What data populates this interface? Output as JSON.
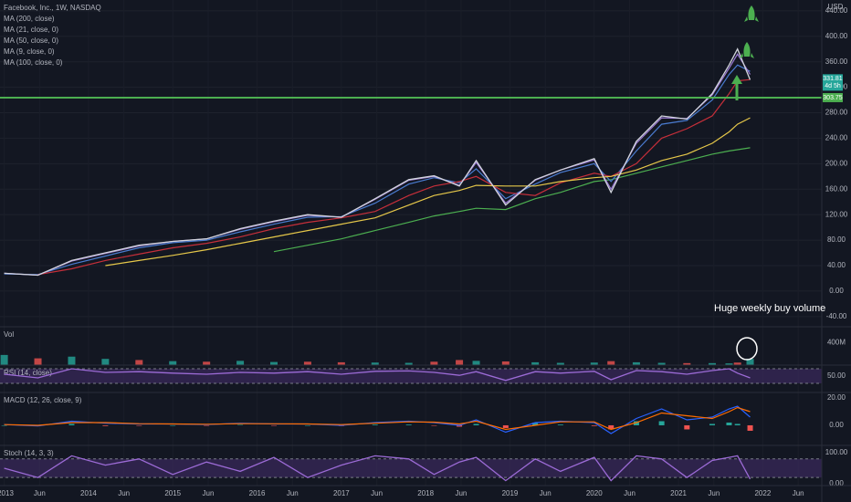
{
  "header": {
    "countdown": "4d 5h",
    "currency": "USD",
    "annotation": "Huge weekly buy volume"
  },
  "chart_data": [
    {
      "type": "line",
      "title": "Facebook, Inc., 1W, NASDAQ",
      "color": "#d1d4dc",
      "x": [
        2013.0,
        2013.4,
        2013.8,
        2014.2,
        2014.6,
        2015.0,
        2015.4,
        2015.8,
        2016.2,
        2016.6,
        2017.0,
        2017.4,
        2017.8,
        2018.1,
        2018.4,
        2018.6,
        2018.95,
        2019.3,
        2019.6,
        2020.0,
        2020.2,
        2020.5,
        2020.8,
        2021.1,
        2021.4,
        2021.6,
        2021.7,
        2021.85
      ],
      "values": [
        28,
        25,
        48,
        60,
        72,
        78,
        82,
        98,
        110,
        120,
        116,
        145,
        175,
        181,
        165,
        205,
        135,
        175,
        190,
        208,
        155,
        235,
        275,
        270,
        310,
        355,
        380,
        331.81
      ],
      "series": [
        {
          "name": "MA (200, close)",
          "color": "#4caf50",
          "values": [
            null,
            null,
            null,
            null,
            null,
            null,
            null,
            null,
            62,
            72,
            82,
            95,
            108,
            118,
            125,
            130,
            128,
            145,
            155,
            172,
            175,
            185,
            195,
            205,
            215,
            220,
            222,
            225
          ]
        },
        {
          "name": "MA (21, close, 0)",
          "color": "#4a7bd0",
          "values": [
            27,
            26,
            42,
            55,
            68,
            76,
            80,
            93,
            105,
            116,
            117,
            138,
            168,
            178,
            170,
            192,
            145,
            168,
            186,
            200,
            172,
            220,
            262,
            268,
            300,
            340,
            355,
            345
          ]
        },
        {
          "name": "MA (50, close, 0)",
          "color": "#c62f3a",
          "values": [
            null,
            26,
            35,
            48,
            58,
            68,
            75,
            85,
            98,
            108,
            115,
            125,
            150,
            165,
            172,
            180,
            155,
            150,
            170,
            185,
            180,
            200,
            240,
            255,
            275,
            310,
            330,
            332
          ]
        },
        {
          "name": "MA (9, close, 0)",
          "color": "#9c7bd6",
          "values": [
            28,
            25,
            47,
            59,
            71,
            78,
            82,
            97,
            109,
            119,
            116,
            144,
            174,
            180,
            166,
            202,
            138,
            174,
            190,
            206,
            160,
            232,
            272,
            271,
            308,
            350,
            372,
            340
          ]
        },
        {
          "name": "MA (100, close, 0)",
          "color": "#e6c84a",
          "values": [
            null,
            null,
            null,
            40,
            48,
            56,
            65,
            75,
            85,
            95,
            105,
            115,
            135,
            150,
            158,
            166,
            165,
            165,
            172,
            178,
            180,
            190,
            205,
            215,
            232,
            250,
            262,
            272
          ]
        }
      ],
      "hline": 303.75,
      "hline_color": "#4caf50",
      "xlim": [
        2012.95,
        2022.7
      ],
      "ylim": [
        -56,
        457
      ],
      "yticks": [
        {
          "value": 440,
          "label": "440.00"
        },
        {
          "value": 400,
          "label": "400.00"
        },
        {
          "value": 360,
          "label": "360.00"
        },
        {
          "value": 320,
          "label": "320.00"
        },
        {
          "value": 280,
          "label": "280.00"
        },
        {
          "value": 240,
          "label": "240.00"
        },
        {
          "value": 200,
          "label": "200.00"
        },
        {
          "value": 160,
          "label": "160.00"
        },
        {
          "value": 120,
          "label": "120.00"
        },
        {
          "value": 80,
          "label": "80.00"
        },
        {
          "value": 40,
          "label": "40.00"
        },
        {
          "value": 0,
          "label": "0.00"
        },
        {
          "value": -40,
          "label": "-40.00"
        }
      ],
      "xticks": [
        {
          "value": 2013.0,
          "label": "2013"
        },
        {
          "value": 2013.42,
          "label": "Jun"
        },
        {
          "value": 2014.0,
          "label": "2014"
        },
        {
          "value": 2014.42,
          "label": "Jun"
        },
        {
          "value": 2015.0,
          "label": "2015"
        },
        {
          "value": 2015.42,
          "label": "Jun"
        },
        {
          "value": 2016.0,
          "label": "2016"
        },
        {
          "value": 2016.42,
          "label": "Jun"
        },
        {
          "value": 2017.0,
          "label": "2017"
        },
        {
          "value": 2017.42,
          "label": "Jun"
        },
        {
          "value": 2018.0,
          "label": "2018"
        },
        {
          "value": 2018.42,
          "label": "Jun"
        },
        {
          "value": 2019.0,
          "label": "2019"
        },
        {
          "value": 2019.42,
          "label": "Jun"
        },
        {
          "value": 2020.0,
          "label": "2020"
        },
        {
          "value": 2020.42,
          "label": "Jun"
        },
        {
          "value": 2021.0,
          "label": "2021"
        },
        {
          "value": 2021.42,
          "label": "Jun"
        },
        {
          "value": 2022.0,
          "label": "2022"
        },
        {
          "value": 2022.42,
          "label": "Jun"
        }
      ],
      "grid": true
    },
    {
      "type": "bar",
      "title": "Vol",
      "x": [
        2013.0,
        2013.4,
        2013.8,
        2014.2,
        2014.6,
        2015.0,
        2015.4,
        2015.8,
        2016.2,
        2016.6,
        2017.0,
        2017.4,
        2017.8,
        2018.1,
        2018.4,
        2018.6,
        2018.95,
        2019.3,
        2019.6,
        2020.0,
        2020.2,
        2020.5,
        2020.8,
        2021.1,
        2021.4,
        2021.6,
        2021.7,
        2021.85
      ],
      "values": [
        180,
        120,
        150,
        110,
        90,
        70,
        60,
        75,
        55,
        60,
        50,
        45,
        40,
        60,
        90,
        75,
        65,
        50,
        40,
        45,
        70,
        50,
        40,
        35,
        35,
        30,
        45,
        110
      ],
      "colors": [
        "#26a69a",
        "#ef5350",
        "#26a69a",
        "#26a69a",
        "#ef5350",
        "#26a69a",
        "#ef5350",
        "#26a69a",
        "#26a69a",
        "#ef5350",
        "#ef5350",
        "#26a69a",
        "#26a69a",
        "#ef5350",
        "#ef5350",
        "#26a69a",
        "#ef5350",
        "#26a69a",
        "#26a69a",
        "#26a69a",
        "#ef5350",
        "#26a69a",
        "#26a69a",
        "#ef5350",
        "#26a69a",
        "#26a69a",
        "#ef5350",
        "#26a69a"
      ],
      "xlim": [
        2012.95,
        2022.7
      ],
      "ylim": [
        0,
        680
      ],
      "yticks": [
        {
          "value": 400,
          "label": "400M"
        }
      ]
    },
    {
      "type": "line",
      "title": "RSI (14, close)",
      "color": "#9c6bd6",
      "x": [
        2013.0,
        2013.4,
        2013.8,
        2014.2,
        2014.6,
        2015.0,
        2015.4,
        2015.8,
        2016.2,
        2016.6,
        2017.0,
        2017.4,
        2017.8,
        2018.1,
        2018.4,
        2018.6,
        2018.95,
        2019.3,
        2019.6,
        2020.0,
        2020.2,
        2020.5,
        2020.8,
        2021.1,
        2021.4,
        2021.6,
        2021.7,
        2021.85
      ],
      "values": [
        55,
        45,
        70,
        60,
        62,
        58,
        55,
        60,
        58,
        62,
        55,
        63,
        64,
        60,
        52,
        62,
        38,
        62,
        58,
        63,
        40,
        65,
        62,
        55,
        65,
        70,
        58,
        45
      ],
      "band": [
        30,
        70
      ],
      "band_color": "#3b2a5c",
      "xlim": [
        2012.95,
        2022.7
      ],
      "ylim": [
        5,
        80
      ],
      "yticks": [
        {
          "value": 50,
          "label": "50.00"
        }
      ]
    },
    {
      "type": "line",
      "title": "MACD (12, 26, close, 9)",
      "x": [
        2013.0,
        2013.4,
        2013.8,
        2014.2,
        2014.6,
        2015.0,
        2015.4,
        2015.8,
        2016.2,
        2016.6,
        2017.0,
        2017.4,
        2017.8,
        2018.1,
        2018.4,
        2018.6,
        2018.95,
        2019.3,
        2019.6,
        2020.0,
        2020.2,
        2020.5,
        2020.8,
        2021.1,
        2021.4,
        2021.6,
        2021.7,
        2021.85
      ],
      "series": [
        {
          "color": "#2962ff",
          "values": [
            0.5,
            -0.5,
            3,
            1.5,
            1,
            1,
            0.5,
            1.5,
            1,
            1,
            0,
            2,
            3,
            2,
            0,
            4,
            -5,
            2,
            3,
            2,
            -6,
            5,
            12,
            4,
            6,
            12,
            14,
            6
          ]
        },
        {
          "color": "#ff6d00",
          "values": [
            0.5,
            0,
            2,
            2,
            1.2,
            1,
            0.8,
            1.2,
            1.1,
            1,
            0.5,
            1.5,
            2.5,
            2.3,
            1,
            3,
            -3,
            0,
            2.5,
            2.5,
            -3,
            2,
            9,
            7,
            5,
            10,
            13,
            10
          ]
        }
      ],
      "histogram": [
        0,
        -0.5,
        1,
        -0.5,
        -0.2,
        0,
        -0.3,
        0.3,
        -0.1,
        0,
        -0.5,
        0.5,
        0.5,
        -0.3,
        -1,
        1,
        -2,
        2,
        0.5,
        -0.5,
        -3,
        3,
        3,
        -3,
        1,
        2,
        1,
        -4
      ],
      "xlim": [
        2012.95,
        2022.7
      ],
      "ylim": [
        -14.7,
        24
      ],
      "yticks": [
        {
          "value": 20,
          "label": "20.00"
        },
        {
          "value": 0,
          "label": "0.00"
        }
      ]
    },
    {
      "type": "line",
      "title": "Stoch (14, 3, 3)",
      "color": "#9c6bd6",
      "x": [
        2013.0,
        2013.4,
        2013.8,
        2014.2,
        2014.6,
        2015.0,
        2015.4,
        2015.8,
        2016.2,
        2016.6,
        2017.0,
        2017.4,
        2017.8,
        2018.1,
        2018.4,
        2018.6,
        2018.95,
        2019.3,
        2019.6,
        2020.0,
        2020.2,
        2020.5,
        2020.8,
        2021.1,
        2021.4,
        2021.6,
        2021.7,
        2021.85
      ],
      "values": [
        50,
        20,
        90,
        60,
        80,
        30,
        70,
        40,
        85,
        20,
        60,
        90,
        80,
        30,
        70,
        85,
        10,
        80,
        40,
        85,
        10,
        90,
        80,
        20,
        75,
        85,
        90,
        15
      ],
      "band": [
        20,
        80
      ],
      "band_color": "#3b2a5c",
      "xlim": [
        2012.95,
        2022.7
      ],
      "ylim": [
        -6,
        123.5
      ],
      "yticks": [
        {
          "value": 100,
          "label": "100.00"
        },
        {
          "value": 0,
          "label": "0.00"
        }
      ]
    }
  ]
}
